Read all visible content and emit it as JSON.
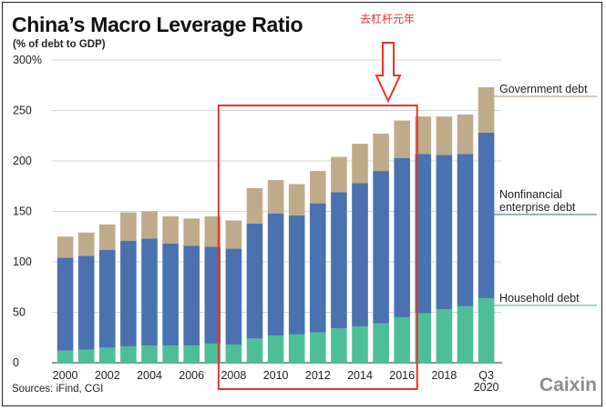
{
  "chart_data": {
    "type": "bar",
    "stacked": true,
    "title": "China’s Macro Leverage Ratio",
    "subtitle": "(% of debt to GDP)",
    "ylim": [
      0,
      300
    ],
    "yticks": [
      0,
      50,
      100,
      150,
      200,
      250,
      300
    ],
    "ytick_labels": [
      "0",
      "50",
      "100",
      "150",
      "200",
      "250",
      "300%"
    ],
    "grid": true,
    "categories": [
      "2000",
      "2001",
      "2002",
      "2003",
      "2004",
      "2005",
      "2006",
      "2007",
      "2008",
      "2009",
      "2010",
      "2011",
      "2012",
      "2013",
      "2014",
      "2015",
      "2016",
      "2017",
      "2018",
      "2019",
      "Q3 2020"
    ],
    "x_tick_labels": [
      {
        "index": 0,
        "lines": [
          "2000"
        ]
      },
      {
        "index": 2,
        "lines": [
          "2002"
        ]
      },
      {
        "index": 4,
        "lines": [
          "2004"
        ]
      },
      {
        "index": 6,
        "lines": [
          "2006"
        ]
      },
      {
        "index": 8,
        "lines": [
          "2008"
        ]
      },
      {
        "index": 10,
        "lines": [
          "2010"
        ]
      },
      {
        "index": 12,
        "lines": [
          "2012"
        ]
      },
      {
        "index": 14,
        "lines": [
          "2014"
        ]
      },
      {
        "index": 16,
        "lines": [
          "2016"
        ]
      },
      {
        "index": 18,
        "lines": [
          "2018"
        ]
      },
      {
        "index": 20,
        "lines": [
          "Q3",
          "2020"
        ]
      }
    ],
    "series": [
      {
        "name": "Household debt",
        "color": "#4cbf98",
        "values": [
          12,
          13,
          15,
          16,
          17,
          17,
          17,
          19,
          18,
          24,
          27,
          28,
          30,
          34,
          36,
          39,
          45,
          49,
          53,
          56,
          64
        ]
      },
      {
        "name": "Nonfinancial enterprise debt",
        "color": "#4b72b0",
        "values": [
          92,
          93,
          97,
          105,
          106,
          101,
          99,
          96,
          95,
          114,
          121,
          118,
          128,
          135,
          142,
          151,
          158,
          158,
          153,
          151,
          164
        ]
      },
      {
        "name": "Government debt",
        "color": "#bfab8a",
        "values": [
          21,
          23,
          25,
          28,
          27,
          27,
          27,
          30,
          28,
          35,
          33,
          31,
          32,
          35,
          39,
          37,
          37,
          37,
          38,
          39,
          45
        ]
      }
    ],
    "legend": [
      {
        "lines": [
          "Government debt"
        ],
        "series": 2
      },
      {
        "lines": [
          "Nonfinancial",
          "enterprise debt"
        ],
        "series": 1
      },
      {
        "lines": [
          "Household debt"
        ],
        "series": 0
      }
    ],
    "annotation": {
      "text": "去杠杆元年",
      "range_start": "2008",
      "range_end": "2016",
      "color": "#e8322a"
    },
    "source": "Sources: iFind, CGI",
    "brand": "Caixin"
  }
}
